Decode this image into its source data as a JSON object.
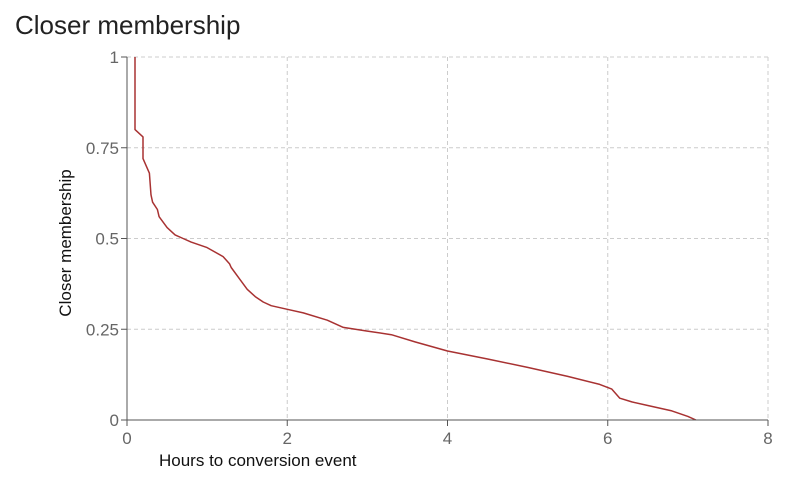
{
  "chart_data": {
    "type": "line",
    "title": "Closer membership",
    "xlabel": "Hours to conversion event",
    "ylabel": "Closer membership",
    "xlim": [
      0,
      8
    ],
    "ylim": [
      0,
      1
    ],
    "x_ticks": [
      0,
      2,
      4,
      6,
      8
    ],
    "x_tick_labels": [
      "0",
      "2",
      "4",
      "6",
      "8"
    ],
    "y_ticks": [
      0,
      0.25,
      0.5,
      0.75,
      1
    ],
    "y_tick_labels": [
      "0",
      "0.25",
      "0.5",
      "0.75",
      "1"
    ],
    "grid": true,
    "series": [
      {
        "color": "#a83232",
        "x": [
          0.1,
          0.1,
          0.1,
          0.2,
          0.2,
          0.28,
          0.3,
          0.32,
          0.38,
          0.4,
          0.5,
          0.6,
          0.7,
          0.8,
          1.0,
          1.2,
          1.28,
          1.3,
          1.4,
          1.5,
          1.6,
          1.7,
          1.8,
          2.0,
          2.2,
          2.5,
          2.7,
          3.0,
          3.3,
          3.6,
          4.0,
          4.5,
          5.0,
          5.5,
          5.9,
          6.05,
          6.15,
          6.3,
          6.5,
          6.8,
          7.0,
          7.1
        ],
        "y": [
          1.0,
          0.82,
          0.8,
          0.78,
          0.72,
          0.68,
          0.62,
          0.6,
          0.58,
          0.56,
          0.53,
          0.51,
          0.5,
          0.49,
          0.475,
          0.45,
          0.43,
          0.42,
          0.39,
          0.36,
          0.34,
          0.325,
          0.315,
          0.305,
          0.295,
          0.275,
          0.255,
          0.245,
          0.235,
          0.215,
          0.19,
          0.168,
          0.145,
          0.12,
          0.098,
          0.085,
          0.06,
          0.05,
          0.04,
          0.025,
          0.01,
          0.0
        ]
      }
    ]
  }
}
